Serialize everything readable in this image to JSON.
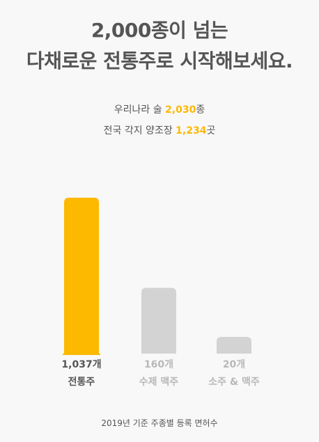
{
  "headline": {
    "line1": "2,000종이 넘는",
    "line2": "다채로운 전통주로 시작해보세요."
  },
  "stats": [
    {
      "prefix": "우리나라 술 ",
      "value": "2,030",
      "suffix": "종"
    },
    {
      "prefix": "전국 각지 양조장 ",
      "value": "1,234",
      "suffix": "곳"
    }
  ],
  "colors": {
    "accent": "#fcb900",
    "muted_bar": "#d3d3d3",
    "text": "#555555",
    "muted_text": "#b8b8b8",
    "background": "#f8f8f8"
  },
  "chart_data": {
    "type": "bar",
    "title": "",
    "xlabel": "",
    "ylabel": "",
    "categories": [
      "전통주",
      "수제 맥주",
      "소주 & 맥주"
    ],
    "values": [
      1037,
      160,
      20
    ],
    "value_labels": [
      "1,037개",
      "160개",
      "20개"
    ],
    "highlight_index": 0,
    "grid": false,
    "legend": "none",
    "note": "bar heights are not drawn to linear scale in the original"
  },
  "footnote": "2019년 기준 주종별 등록 면허수"
}
